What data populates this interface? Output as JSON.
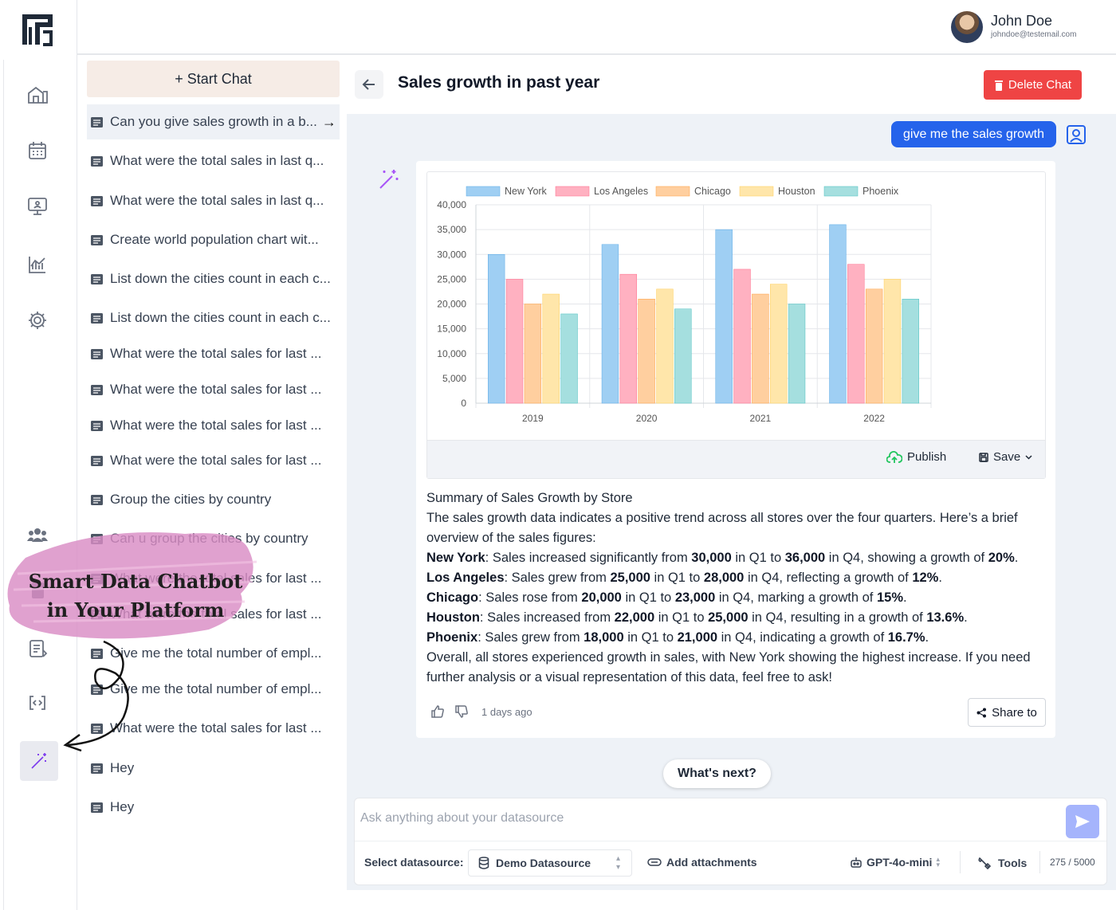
{
  "user": {
    "name": "John Doe",
    "email": "johndoe@testemail.com"
  },
  "sidebar": {
    "start_chat_label": "+ Start Chat",
    "chats": [
      {
        "label": "Can you give sales growth in a b...",
        "active": true
      },
      {
        "label": "What were the total sales in last q..."
      },
      {
        "label": "What were the total sales in last q..."
      },
      {
        "label": "Create world population chart wit..."
      },
      {
        "label": "List down the cities count in each c..."
      },
      {
        "label": "List down the cities count in each c..."
      },
      {
        "label": "What were the total sales for last ..."
      },
      {
        "label": "What were the total sales for last ..."
      },
      {
        "label": "What were the total sales for last ..."
      },
      {
        "label": "What were the total sales for last ..."
      },
      {
        "label": "Group the cities by country"
      },
      {
        "label": "Can u group the cities by country"
      },
      {
        "label": "What were the total sales for last ..."
      },
      {
        "label": "What were the total sales for last ..."
      },
      {
        "label": "Give me the total number of empl..."
      },
      {
        "label": "Give me the total number of empl..."
      },
      {
        "label": "What were the total sales for last ..."
      },
      {
        "label": "Hey"
      },
      {
        "label": "Hey"
      }
    ]
  },
  "chat": {
    "title": "Sales growth in past year",
    "delete_label": "Delete Chat",
    "user_message": "give me the sales growth",
    "publish_label": "Publish",
    "save_label": "Save",
    "summary": {
      "heading": "Summary of Sales Growth by Store",
      "intro": "The sales growth data indicates a positive trend across all stores over the four quarters. Here’s a brief overview of the sales figures:",
      "lines": [
        {
          "city": "New York",
          "parts": [
            ": Sales increased significantly from ",
            "30,000",
            " in Q1 to ",
            "36,000",
            " in Q4, showing a growth of ",
            "20%",
            "."
          ]
        },
        {
          "city": "Los Angeles",
          "parts": [
            ": Sales grew from ",
            "25,000",
            " in Q1 to ",
            "28,000",
            " in Q4, reflecting a growth of ",
            "12%",
            "."
          ]
        },
        {
          "city": "Chicago",
          "parts": [
            ": Sales rose from ",
            "20,000",
            " in Q1 to ",
            "23,000",
            " in Q4, marking a growth of ",
            "15%",
            "."
          ]
        },
        {
          "city": "Houston",
          "parts": [
            ": Sales increased from ",
            "22,000",
            " in Q1 to ",
            "25,000",
            " in Q4, resulting in a growth of ",
            "13.6%",
            "."
          ]
        },
        {
          "city": "Phoenix",
          "parts": [
            ": Sales grew from ",
            "18,000",
            " in Q1 to ",
            "21,000",
            " in Q4, indicating a growth of ",
            "16.7%",
            "."
          ]
        }
      ],
      "outro": "Overall, all stores experienced growth in sales, with New York showing the highest increase. If you need further analysis or a visual representation of this data, feel free to ask!"
    },
    "timestamp": "1 days ago",
    "share_label": "Share to",
    "whats_next_label": "What's next?"
  },
  "composer": {
    "placeholder": "Ask anything about your datasource",
    "datasource_label": "Select datasource:",
    "datasource_value": "Demo Datasource",
    "attachments_label": "Add attachments",
    "model_value": "GPT-4o-mini",
    "tools_label": "Tools",
    "counter": "275 / 5000"
  },
  "overlay": {
    "promo_line1": "Smart Data Chatbot",
    "promo_line2": "in Your Platform"
  },
  "chart_data": {
    "type": "bar",
    "categories": [
      "2019",
      "2020",
      "2021",
      "2022"
    ],
    "series": [
      {
        "name": "New York",
        "values": [
          30000,
          32000,
          35000,
          36000
        ],
        "color": "#9fcff3",
        "border": "#5aa9e6"
      },
      {
        "name": "Los Angeles",
        "values": [
          25000,
          26000,
          27000,
          28000
        ],
        "color": "#ffb1c1",
        "border": "#ff6b8a"
      },
      {
        "name": "Chicago",
        "values": [
          20000,
          21000,
          22000,
          23000
        ],
        "color": "#ffcf9f",
        "border": "#ff9f40"
      },
      {
        "name": "Houston",
        "values": [
          22000,
          23000,
          24000,
          25000
        ],
        "color": "#ffe6aa",
        "border": "#ffcd56"
      },
      {
        "name": "Phoenix",
        "values": [
          18000,
          19000,
          20000,
          21000
        ],
        "color": "#a5dfdf",
        "border": "#4bc0c0"
      }
    ],
    "ylim": [
      0,
      40000
    ],
    "yticks": [
      "0",
      "5,000",
      "10,000",
      "15,000",
      "20,000",
      "25,000",
      "30,000",
      "35,000",
      "40,000"
    ],
    "legend_position": "top",
    "grid": true
  },
  "colors": {
    "accent": "#2563eb",
    "danger": "#ef4444",
    "send": "#a5b4fc",
    "promo": "#d98cc4"
  }
}
